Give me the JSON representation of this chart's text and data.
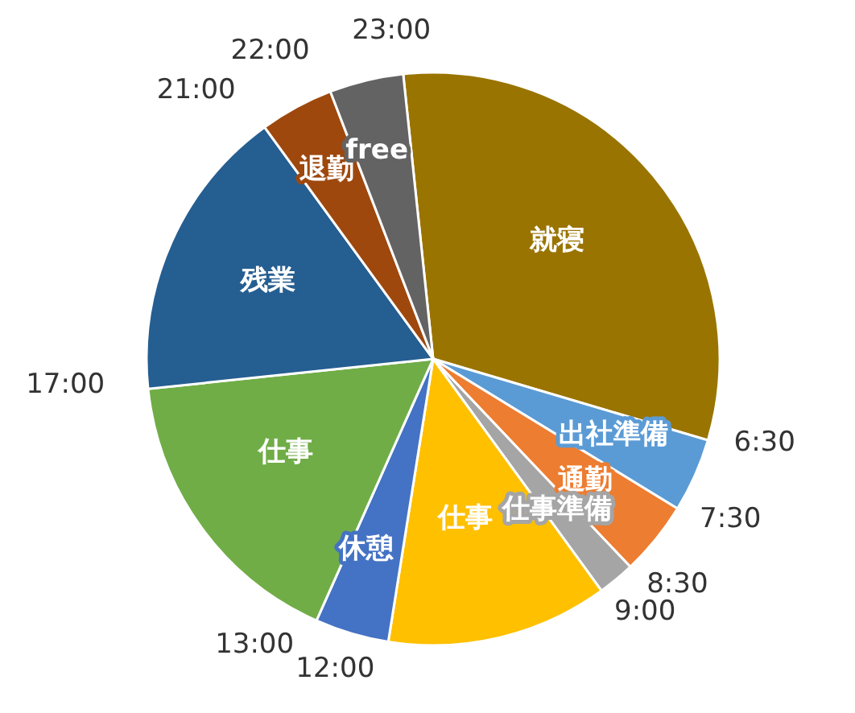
{
  "chart_data": {
    "type": "pie",
    "categories": [
      "就寝",
      "出社準備",
      "通勤",
      "仕事準備",
      "仕事",
      "休憩",
      "仕事",
      "残業",
      "退勤",
      "free"
    ],
    "values": [
      31.25,
      4.17,
      4.17,
      2.08,
      12.5,
      4.17,
      16.66,
      16.66,
      4.17,
      4.17
    ],
    "colors": [
      "#9a7400",
      "#5b9bd5",
      "#ed7d31",
      "#a5a5a5",
      "#ffc000",
      "#4472c4",
      "#70ad47",
      "#255e91",
      "#9e480e",
      "#636363"
    ],
    "annotations": [
      "23:00",
      "6:30",
      "7:30",
      "8:30",
      "9:00",
      "12:00",
      "13:00",
      "17:00",
      "21:00",
      "22:00"
    ],
    "legend": false
  }
}
